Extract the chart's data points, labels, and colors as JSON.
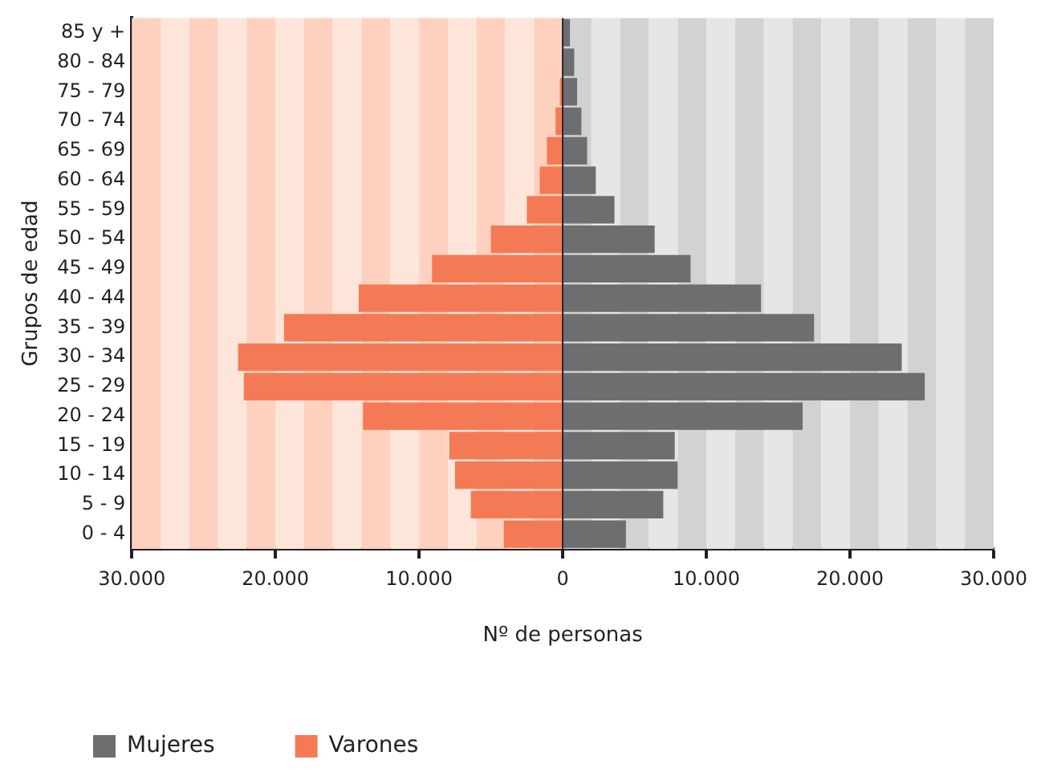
{
  "chart_data": {
    "type": "bar",
    "orientation": "horizontal",
    "stacked": true,
    "xlabel": "Nº de personas",
    "ylabel": "Grupos de edad",
    "categories": [
      "85 y +",
      "80 - 84",
      "75 - 79",
      "70 - 74",
      "65 - 69",
      "60 - 64",
      "55 - 59",
      "50 - 54",
      "45 - 49",
      "40 - 44",
      "35 - 39",
      "30 - 34",
      "25 - 29",
      "20 - 24",
      "15 - 19",
      "10 - 14",
      "5 - 9",
      "0 - 4"
    ],
    "series": [
      {
        "name": "Mujeres",
        "color": "#6d6e70",
        "values": [
          500,
          800,
          1000,
          1300,
          1700,
          2300,
          3600,
          6400,
          8900,
          13800,
          17500,
          23600,
          25200,
          16700,
          7800,
          8000,
          7000,
          4400
        ]
      },
      {
        "name": "Varones",
        "color": "#f47a55",
        "values": [
          null,
          null,
          -200,
          -500,
          -1100,
          -1600,
          -2500,
          -5000,
          -9100,
          -14200,
          -19400,
          -22600,
          -22200,
          -13900,
          -7900,
          -7500,
          -6400,
          -4100
        ]
      }
    ],
    "xlim": [
      -30000,
      30000
    ],
    "xticks": [
      {
        "value": -30000,
        "label": "30.000"
      },
      {
        "value": -20000,
        "label": "20.000"
      },
      {
        "value": -10000,
        "label": "10.000"
      },
      0,
      {
        "value": 10000,
        "label": "10.000"
      },
      {
        "value": 20000,
        "label": "20.000"
      },
      {
        "value": 30000,
        "label": "30.000"
      }
    ],
    "grid": false,
    "legend": "bottom left",
    "ref_lines": [
      {
        "axis": "x",
        "value": 0,
        "color": "#231f20"
      }
    ],
    "bands": [
      {
        "axis": "x",
        "from": -30000,
        "to": -28000,
        "color": "#fdd0bf"
      },
      {
        "axis": "x",
        "from": -28000,
        "to": -26000,
        "color": "#fde5da"
      },
      {
        "axis": "x",
        "from": -26000,
        "to": -24000,
        "color": "#fdd0bf"
      },
      {
        "axis": "x",
        "from": -24000,
        "to": -22000,
        "color": "#fde5da"
      },
      {
        "axis": "x",
        "from": -22000,
        "to": -20000,
        "color": "#fdd0bf"
      },
      {
        "axis": "x",
        "from": -20000,
        "to": -18000,
        "color": "#fde5da"
      },
      {
        "axis": "x",
        "from": -18000,
        "to": -16000,
        "color": "#fdd0bf"
      },
      {
        "axis": "x",
        "from": -16000,
        "to": -14000,
        "color": "#fde5da"
      },
      {
        "axis": "x",
        "from": -14000,
        "to": -12000,
        "color": "#fdd0bf"
      },
      {
        "axis": "x",
        "from": -12000,
        "to": -10000,
        "color": "#fde5da"
      },
      {
        "axis": "x",
        "from": -10000,
        "to": -8000,
        "color": "#fdd0bf"
      },
      {
        "axis": "x",
        "from": -8000,
        "to": -6000,
        "color": "#fde5da"
      },
      {
        "axis": "x",
        "from": -6000,
        "to": -4000,
        "color": "#fdd0bf"
      },
      {
        "axis": "x",
        "from": -4000,
        "to": -2000,
        "color": "#fde5da"
      },
      {
        "axis": "x",
        "from": -2000,
        "to": 0,
        "color": "#fdd0bf"
      },
      {
        "axis": "x",
        "from": 0,
        "to": 2000,
        "color": "#d1d2d4"
      },
      {
        "axis": "x",
        "from": 2000,
        "to": 4000,
        "color": "#e5e6e8"
      },
      {
        "axis": "x",
        "from": 4000,
        "to": 6000,
        "color": "#d1d2d4"
      },
      {
        "axis": "x",
        "from": 6000,
        "to": 8000,
        "color": "#e5e6e8"
      },
      {
        "axis": "x",
        "from": 8000,
        "to": 10000,
        "color": "#d1d2d4"
      },
      {
        "axis": "x",
        "from": 10000,
        "to": 12000,
        "color": "#e5e6e8"
      },
      {
        "axis": "x",
        "from": 12000,
        "to": 14000,
        "color": "#d1d2d4"
      },
      {
        "axis": "x",
        "from": 14000,
        "to": 16000,
        "color": "#e5e6e8"
      },
      {
        "axis": "x",
        "from": 16000,
        "to": 18000,
        "color": "#d1d2d4"
      },
      {
        "axis": "x",
        "from": 18000,
        "to": 20000,
        "color": "#e5e6e8"
      },
      {
        "axis": "x",
        "from": 20000,
        "to": 22000,
        "color": "#d1d2d4"
      },
      {
        "axis": "x",
        "from": 22000,
        "to": 24000,
        "color": "#e5e6e8"
      },
      {
        "axis": "x",
        "from": 24000,
        "to": 26000,
        "color": "#d1d2d4"
      },
      {
        "axis": "x",
        "from": 26000,
        "to": 28000,
        "color": "#e5e6e8"
      },
      {
        "axis": "x",
        "from": 28000,
        "to": 30000,
        "color": "#d1d2d4"
      }
    ]
  }
}
